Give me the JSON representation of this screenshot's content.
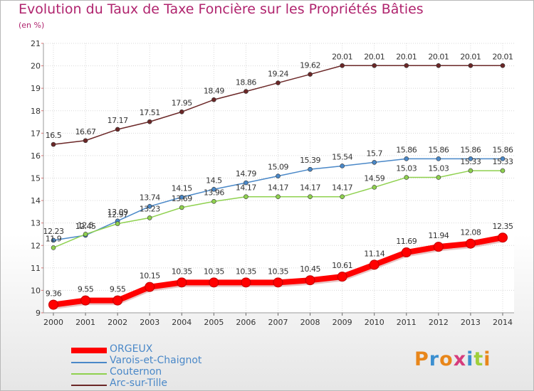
{
  "header": {
    "title": "Evolution du Taux de Taxe Foncière sur les Propriétés Bâties",
    "unit": "(en %)"
  },
  "logo": {
    "text": "Proxiti",
    "colors": [
      "#e8861a",
      "#3b8fd0",
      "#e8861a",
      "#d63c7c",
      "#3b8fd0",
      "#9fcf3a",
      "#e8861a"
    ]
  },
  "chart_data": {
    "type": "line",
    "title": "Evolution du Taux de Taxe Foncière sur les Propriétés Bâties",
    "ylabel": "(en %)",
    "xlabel": "",
    "x": [
      2000,
      2001,
      2002,
      2003,
      2004,
      2005,
      2006,
      2007,
      2008,
      2009,
      2010,
      2011,
      2012,
      2013,
      2014
    ],
    "ylim": [
      9,
      21
    ],
    "yticks": [
      9,
      10,
      11,
      12,
      13,
      14,
      15,
      16,
      17,
      18,
      19,
      20,
      21
    ],
    "grid": true,
    "legend": "bottom-left",
    "series": [
      {
        "name": "Arc-sur-Tille",
        "color": "#6b2727",
        "values": [
          16.5,
          16.67,
          17.17,
          17.51,
          17.95,
          18.49,
          18.86,
          19.24,
          19.62,
          20.01,
          20.01,
          20.01,
          20.01,
          20.01,
          20.01
        ]
      },
      {
        "name": "Varois-et-Chaignot",
        "color": "#4a88c8",
        "values": [
          12.23,
          12.45,
          13.09,
          13.74,
          14.15,
          14.5,
          14.79,
          15.09,
          15.39,
          15.54,
          15.7,
          15.86,
          15.86,
          15.86,
          15.86
        ]
      },
      {
        "name": "Couternon",
        "color": "#8fd14f",
        "values": [
          11.9,
          12.5,
          12.97,
          13.23,
          13.69,
          13.96,
          14.17,
          14.17,
          14.17,
          14.17,
          14.59,
          15.03,
          15.03,
          15.33,
          15.33
        ]
      },
      {
        "name": "ORGEUX",
        "color": "#ff0000",
        "values": [
          9.36,
          9.55,
          9.55,
          10.15,
          10.35,
          10.35,
          10.35,
          10.35,
          10.45,
          10.61,
          11.14,
          11.69,
          11.94,
          12.08,
          12.35
        ]
      }
    ],
    "value_labels": {
      "Arc-sur-Tille": [
        "16.5",
        "16.67",
        "17.17",
        "17.51",
        "17.95",
        "18.49",
        "18.86",
        "19.24",
        "19.62",
        "20.01",
        "20.01",
        "20.01",
        "20.01",
        "20.01",
        "20.01"
      ],
      "Varois-et-Chaignot": [
        "12.23",
        "12.45",
        "13.09",
        "13.74",
        "14.15",
        "14.5",
        "14.79",
        "15.09",
        "15.39",
        "15.54",
        "15.7",
        "15.86",
        "15.86",
        "15.86",
        "15.86"
      ],
      "Couternon": [
        "11.9",
        "12.5",
        "12.97",
        "13.23",
        "13.69",
        "13.96",
        "14.17",
        "14.17",
        "14.17",
        "14.17",
        "14.59",
        "15.03",
        "15.03",
        "15.33",
        "15.33"
      ],
      "ORGEUX": [
        "9.36",
        "9.55",
        "9.55",
        "10.15",
        "10.35",
        "10.35",
        "10.35",
        "10.35",
        "10.45",
        "10.61",
        "11.14",
        "11.69",
        "11.94",
        "12.08",
        "12.35"
      ]
    },
    "legend_entries": [
      {
        "name": "ORGEUX",
        "color": "#ff0000"
      },
      {
        "name": "Varois-et-Chaignot",
        "color": "#4a88c8"
      },
      {
        "name": "Couternon",
        "color": "#8fd14f"
      },
      {
        "name": "Arc-sur-Tille",
        "color": "#6b2727"
      }
    ]
  }
}
